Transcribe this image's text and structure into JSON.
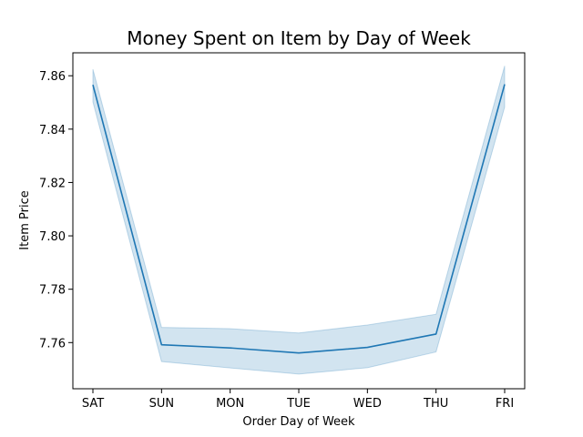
{
  "chart_data": {
    "type": "line",
    "title": "Money Spent on Item by Day of Week",
    "xlabel": "Order Day of Week",
    "ylabel": "Item Price",
    "categories": [
      "SAT",
      "SUN",
      "MON",
      "TUE",
      "WED",
      "THU",
      "FRI"
    ],
    "series": [
      {
        "values": [
          7.8566,
          7.7592,
          7.758,
          7.7561,
          7.7582,
          7.7632,
          7.8568
        ],
        "ci_low": [
          7.8502,
          7.7529,
          7.7505,
          7.7482,
          7.7506,
          7.7565,
          7.8483
        ],
        "ci_high": [
          7.8624,
          7.7657,
          7.7652,
          7.7636,
          7.7666,
          7.7706,
          7.8637
        ]
      }
    ],
    "ylim": [
      7.7427,
      7.8686
    ],
    "yticks": [
      "7.76",
      "7.78",
      "7.80",
      "7.82",
      "7.84",
      "7.86"
    ],
    "grid": false,
    "colors": {
      "line": "#1f77b4",
      "band": "#1f77b4"
    }
  }
}
